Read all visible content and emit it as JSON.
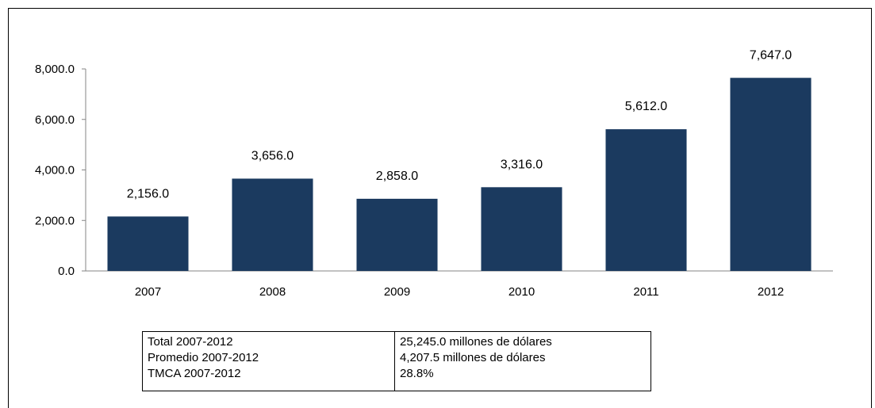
{
  "chart_data": {
    "type": "bar",
    "title": "",
    "xlabel": "",
    "ylabel": "",
    "categories": [
      "2007",
      "2008",
      "2009",
      "2010",
      "2011",
      "2012"
    ],
    "values": [
      2156.0,
      3656.0,
      2858.0,
      3316.0,
      5612.0,
      7647.0
    ],
    "data_labels": [
      "2,156.0",
      "3,656.0",
      "2,858.0",
      "3,316.0",
      "5,612.0",
      "7,647.0"
    ],
    "ylim": [
      0,
      8000
    ],
    "yticks": [
      0,
      2000,
      4000,
      6000,
      8000
    ],
    "ytick_labels": [
      "0.0",
      "2,000.0",
      "4,000.0",
      "6,000.0",
      "8,000.0"
    ],
    "grid": false,
    "legend": "none",
    "bar_color": "#1b3a5f"
  },
  "summary": {
    "rows": [
      {
        "label": "Total 2007-2012",
        "value": "25,245.0 millones de dólares"
      },
      {
        "label": "Promedio 2007-2012",
        "value": "4,207.5 millones de dólares"
      },
      {
        "label": "TMCA 2007-2012",
        "value": "28.8%"
      }
    ]
  }
}
